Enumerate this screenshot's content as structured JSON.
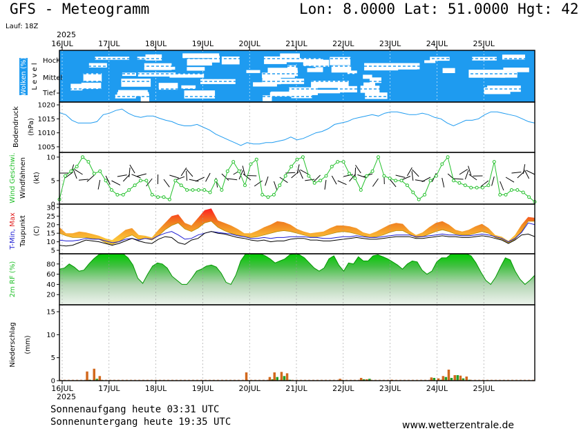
{
  "header": {
    "title": "GFS - Meteogramm",
    "coords": "Lon: 8.0000 Lat: 51.0000 Hgt: 42",
    "lauf": "Lauf: 18Z",
    "year": "2025"
  },
  "footer": {
    "sunrise": "Sonnenaufgang heute 03:31 UTC",
    "sunset": "Sonnenuntergang heute 19:35 UTC",
    "site": "www.wetterzentrale.de"
  },
  "colors": {
    "cloud_bg": "#1e9bf0",
    "pressure": "#1e9bf0",
    "wind": "#22c02a",
    "dewpoint": "#1a1ad2",
    "rh": "#22c02a",
    "precip_rain": "#d2691e",
    "precip_conv": "#22a02a"
  },
  "chart_data": {
    "type": "line",
    "x": [
      "16JUL",
      "17JUL",
      "18JUL",
      "19JUL",
      "20JUL",
      "21JUL",
      "22JUL",
      "23JUL",
      "24JUL",
      "25JUL"
    ],
    "panels": {
      "clouds": {
        "ylabel": "Wolken (%)",
        "ylabel2": "L e v e l",
        "levels": [
          "Hoch",
          "Mittel",
          "Tief"
        ]
      },
      "pressure": {
        "ylabel": "Bodendruck",
        "ylabel2": "(hPa)",
        "yticks": [
          1005,
          1010,
          1015,
          1020
        ],
        "ylim": [
          1003,
          1021
        ],
        "values": [
          1017.2,
          1016.5,
          1014.5,
          1013.5,
          1013.5,
          1013.5,
          1014,
          1016.5,
          1017,
          1018,
          1018.5,
          1017,
          1016,
          1015.5,
          1016,
          1016,
          1015.2,
          1014.5,
          1014,
          1013,
          1012.5,
          1012.5,
          1013,
          1012,
          1011,
          1009.5,
          1008.5,
          1007.5,
          1006.5,
          1005.5,
          1006.5,
          1006,
          1006,
          1006.5,
          1006.5,
          1007,
          1007.5,
          1008.5,
          1007.5,
          1008,
          1009,
          1010,
          1010.5,
          1011.5,
          1013,
          1013.5,
          1014,
          1015,
          1015.5,
          1016,
          1016.5,
          1016,
          1017,
          1017.5,
          1017.5,
          1017,
          1016.5,
          1016.5,
          1017,
          1016.5,
          1015.5,
          1015,
          1013.5,
          1012.5,
          1013.5,
          1014.5,
          1014.5,
          1015,
          1016.5,
          1017.5,
          1017.5,
          1017,
          1016.5,
          1016,
          1015,
          1014,
          1013.5
        ]
      },
      "wind": {
        "ylabel": "Wind Geschwi.",
        "ylabel2": "Windfahnen",
        "ylabel3": "(kt)",
        "yticks": [
          0,
          5,
          10
        ],
        "ylim": [
          0,
          11
        ],
        "values": [
          1,
          6,
          7,
          8,
          10,
          9,
          6.5,
          7,
          5,
          3,
          2,
          2,
          3,
          4,
          5,
          5,
          2,
          1.5,
          1.5,
          1,
          5,
          4,
          3,
          3,
          3,
          3,
          2.5,
          5,
          3,
          7,
          9,
          7,
          4,
          8.5,
          9.5,
          2,
          1.5,
          2,
          4,
          6,
          8,
          9.5,
          10,
          6,
          4.5,
          5,
          6,
          8,
          9,
          9,
          6.5,
          5.5,
          3,
          6,
          7,
          10,
          6,
          5.5,
          5,
          5,
          4,
          2.5,
          1,
          2,
          5,
          6,
          8.5,
          10,
          5,
          4.5,
          4,
          3.5,
          3.5,
          3.5,
          4,
          9,
          2,
          2,
          3,
          3,
          2.5,
          1.5,
          0.5
        ]
      },
      "temperature": {
        "ylabel": "T-Min, Max",
        "ylabel2": "Taupunkt",
        "ylabel3": "(C)",
        "yticks": [
          5,
          10,
          15,
          20,
          25,
          30
        ],
        "ylim": [
          3,
          32
        ],
        "t_max": [
          18.5,
          15,
          15,
          16,
          15.5,
          14.5,
          13.5,
          12,
          11,
          14,
          17,
          18,
          14,
          13.5,
          12.5,
          17,
          21,
          25,
          26,
          21,
          19.5,
          24,
          28.5,
          29.5,
          22.5,
          21,
          19.5,
          17.5,
          15,
          15,
          16.5,
          18.5,
          20,
          22,
          21.5,
          20,
          17.5,
          16,
          15,
          15.5,
          16,
          18,
          19.5,
          19.5,
          19,
          18,
          15.5,
          14.5,
          16,
          18,
          20,
          21,
          20.5,
          16.5,
          14,
          15.5,
          18.5,
          21,
          22,
          20,
          17,
          16,
          17,
          19,
          20.5,
          18,
          14,
          13,
          10.5,
          14,
          20,
          24.5,
          24
        ],
        "t_min": [
          15,
          13.5,
          12.5,
          12.5,
          12.5,
          12,
          11.5,
          9.5,
          8.5,
          10,
          12.5,
          14,
          11.5,
          12,
          11,
          13.5,
          17,
          19.5,
          21,
          17.5,
          16,
          18,
          21,
          22,
          18.5,
          16.5,
          15,
          14,
          13,
          12.5,
          13,
          14,
          15,
          16,
          16.5,
          16,
          15,
          14,
          13,
          13,
          13.5,
          14.5,
          15.5,
          16,
          15.5,
          14.5,
          13.5,
          12.5,
          13,
          14,
          15.5,
          16.5,
          16.5,
          14.5,
          12.5,
          13,
          14.5,
          16,
          17,
          16,
          14.5,
          14,
          14,
          15,
          16,
          15,
          12.5,
          11.5,
          9.5,
          11.5,
          16,
          22,
          22
        ],
        "dewpoint": [
          11,
          10.5,
          10.5,
          11,
          12,
          11.5,
          11.5,
          10.5,
          9.5,
          10,
          11.5,
          12,
          11,
          12,
          11.5,
          13.5,
          15,
          16,
          14,
          11.5,
          12,
          14,
          15,
          16,
          15.5,
          15,
          14.5,
          13.5,
          13,
          12,
          12,
          12.5,
          12,
          12.5,
          12.5,
          13,
          13,
          13,
          12.5,
          12.5,
          12,
          12,
          12.5,
          13,
          13,
          13.5,
          13,
          12.5,
          12.5,
          13,
          13.5,
          14,
          14,
          14,
          13,
          13,
          13.5,
          14,
          14.5,
          14,
          14,
          13.5,
          13.5,
          14,
          14.5,
          14,
          13,
          12,
          10,
          12,
          15.5,
          21,
          20
        ],
        "t2m": [
          8,
          7.5,
          8,
          9.5,
          11,
          10.5,
          10,
          9,
          8,
          9,
          10.5,
          12,
          10.5,
          9.5,
          9,
          11.5,
          13,
          12.5,
          9.5,
          8.5,
          11,
          12,
          15,
          16,
          15,
          14.5,
          13.5,
          12.5,
          12,
          11,
          10.5,
          11,
          10,
          10.5,
          10.5,
          11.5,
          12,
          12,
          11,
          11,
          10.5,
          10.5,
          11,
          11.5,
          12,
          12.5,
          12,
          11.5,
          11.5,
          12,
          12.5,
          13,
          13,
          13,
          12,
          12,
          12.5,
          13,
          13.5,
          13,
          13,
          12.5,
          12.5,
          13,
          13.5,
          13,
          12,
          11,
          9,
          11,
          14,
          14.5,
          13
        ]
      },
      "humidity": {
        "ylabel": "2m RF (%)",
        "yticks": [
          20,
          40,
          60,
          80
        ],
        "ylim": [
          0,
          100
        ],
        "values": [
          70,
          72,
          80,
          74,
          66,
          68,
          80,
          90,
          98,
          100,
          100,
          100,
          100,
          100,
          92,
          78,
          52,
          42,
          60,
          76,
          82,
          80,
          72,
          56,
          48,
          40,
          40,
          52,
          66,
          70,
          76,
          78,
          74,
          62,
          44,
          40,
          58,
          86,
          100,
          100,
          100,
          100,
          96,
          90,
          82,
          86,
          90,
          98,
          100,
          98,
          92,
          82,
          72,
          66,
          72,
          90,
          96,
          78,
          66,
          82,
          80,
          94,
          86,
          86,
          96,
          98,
          94,
          90,
          84,
          78,
          70,
          80,
          86,
          84,
          68,
          60,
          66,
          84,
          92,
          92,
          100,
          100,
          100,
          100,
          96,
          82,
          64,
          48,
          40,
          54,
          74,
          92,
          88,
          66,
          50,
          40,
          48,
          58
        ]
      },
      "precipitation": {
        "ylabel": "Niederschlag",
        "ylabel2": "(mm)",
        "yticks": [
          0,
          5,
          10,
          15
        ],
        "ylim": [
          0,
          16.5
        ],
        "bars": [
          [
            0.55,
            2.0,
            0.2
          ],
          [
            0.7,
            2.6,
            0.4
          ],
          [
            0.82,
            1.0,
            0.1
          ],
          [
            3.95,
            1.8,
            0.0
          ],
          [
            4.45,
            0.8,
            0.3
          ],
          [
            4.55,
            1.8,
            0.8
          ],
          [
            4.7,
            1.9,
            1.0
          ],
          [
            4.82,
            1.6,
            0.2
          ],
          [
            5.95,
            0.4,
            0.1
          ],
          [
            6.4,
            0.6,
            0.3
          ],
          [
            6.52,
            0.3,
            0.4
          ],
          [
            7.05,
            0.2,
            0.0
          ],
          [
            7.9,
            0.7,
            0.6
          ],
          [
            8.05,
            0.5,
            0.2
          ],
          [
            8.15,
            1.0,
            0.8
          ],
          [
            8.27,
            2.4,
            0.6
          ],
          [
            8.4,
            1.2,
            1.2
          ],
          [
            8.52,
            1.1,
            0.5
          ],
          [
            8.65,
            0.9,
            0.2
          ]
        ]
      }
    }
  }
}
